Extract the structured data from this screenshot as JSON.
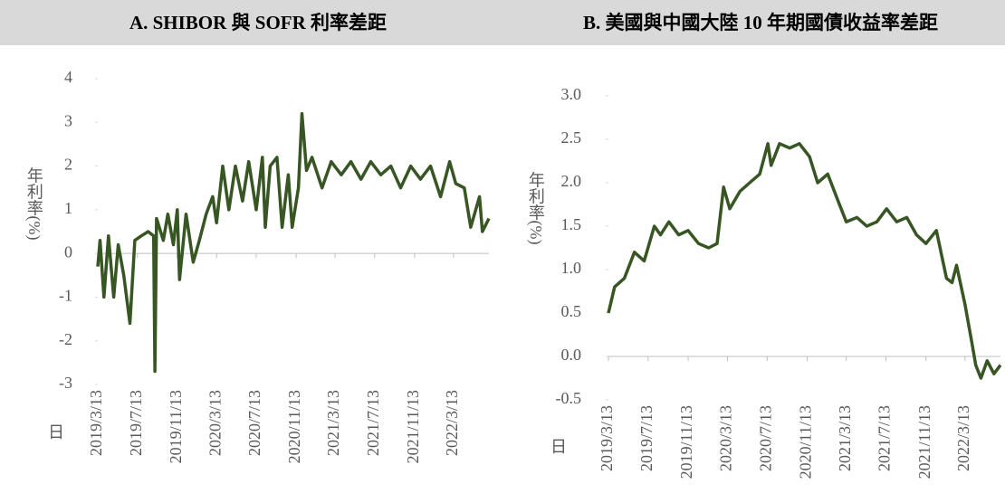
{
  "chart_data": [
    {
      "type": "line",
      "title": "A. SHIBOR 與 SOFR 利率差距",
      "ylabel": "年利率(%)",
      "xlabel": "日",
      "color": "#375623",
      "xlim": [
        "2019/3/13",
        "2022/6/30"
      ],
      "xticks": [
        "2019/3/13",
        "2019/7/13",
        "2019/11/13",
        "2020/3/13",
        "2020/7/13",
        "2020/11/13",
        "2021/3/13",
        "2021/7/13",
        "2021/11/13",
        "2022/3/13"
      ],
      "ylim": [
        -3,
        4
      ],
      "yticks": [
        4,
        3,
        2,
        1,
        0,
        -1,
        -2,
        -3
      ],
      "x": [
        "2019/3/13",
        "2019/3/20",
        "2019/4/1",
        "2019/4/15",
        "2019/5/1",
        "2019/5/15",
        "2019/6/1",
        "2019/6/20",
        "2019/7/5",
        "2019/7/25",
        "2019/8/15",
        "2019/9/1",
        "2019/9/5",
        "2019/9/10",
        "2019/10/1",
        "2019/10/15",
        "2019/11/1",
        "2019/11/13",
        "2019/11/20",
        "2019/12/10",
        "2020/1/1",
        "2020/1/20",
        "2020/2/10",
        "2020/3/1",
        "2020/3/13",
        "2020/4/1",
        "2020/4/20",
        "2020/5/10",
        "2020/6/1",
        "2020/6/20",
        "2020/7/13",
        "2020/8/1",
        "2020/8/10",
        "2020/8/25",
        "2020/9/15",
        "2020/10/1",
        "2020/10/20",
        "2020/11/1",
        "2020/11/20",
        "2020/12/1",
        "2020/12/15",
        "2021/1/1",
        "2021/2/1",
        "2021/3/1",
        "2021/4/1",
        "2021/5/1",
        "2021/6/1",
        "2021/7/1",
        "2021/8/1",
        "2021/9/1",
        "2021/10/1",
        "2021/11/1",
        "2021/12/1",
        "2022/1/1",
        "2022/2/1",
        "2022/3/1",
        "2022/3/20",
        "2022/4/15",
        "2022/5/5",
        "2022/6/1",
        "2022/6/10",
        "2022/6/30"
      ],
      "values": [
        -0.3,
        0.3,
        -1.0,
        0.4,
        -1.0,
        0.2,
        -0.5,
        -1.6,
        0.3,
        0.4,
        0.5,
        0.4,
        -2.7,
        0.8,
        0.3,
        0.9,
        0.2,
        1.0,
        -0.6,
        0.9,
        -0.2,
        0.3,
        0.9,
        1.3,
        0.7,
        2.0,
        1.0,
        2.0,
        1.2,
        2.1,
        1.0,
        2.2,
        0.6,
        2.0,
        2.2,
        0.6,
        1.8,
        0.6,
        1.5,
        3.2,
        1.9,
        2.2,
        1.5,
        2.1,
        1.8,
        2.1,
        1.7,
        2.1,
        1.8,
        2.0,
        1.5,
        2.0,
        1.7,
        2.0,
        1.3,
        2.1,
        1.6,
        1.5,
        0.6,
        1.3,
        0.5,
        0.8
      ]
    },
    {
      "type": "line",
      "title": "B. 美國與中國大陸 10 年期國債收益率差距",
      "ylabel": "年利率(%)",
      "xlabel": "日",
      "color": "#375623",
      "xlim": [
        "2019/3/13",
        "2022/6/30"
      ],
      "xticks": [
        "2019/3/13",
        "2019/7/13",
        "2019/11/13",
        "2020/3/13",
        "2020/7/13",
        "2020/11/13",
        "2021/3/13",
        "2021/7/13",
        "2021/11/13",
        "2022/3/13"
      ],
      "ylim": [
        -0.5,
        3.0
      ],
      "yticks": [
        {
          "value": 3.0,
          "label": "3.0"
        },
        2.5,
        {
          "value": 2.0,
          "label": "2.0"
        },
        1.5,
        {
          "value": 1.0,
          "label": "1.0"
        },
        0.5,
        {
          "value": 0.0,
          "label": "0.0"
        },
        -0.5
      ],
      "x": [
        "2019/3/13",
        "2019/4/1",
        "2019/5/1",
        "2019/6/1",
        "2019/7/1",
        "2019/8/1",
        "2019/8/20",
        "2019/9/15",
        "2019/10/15",
        "2019/11/13",
        "2019/12/15",
        "2020/1/15",
        "2020/2/10",
        "2020/3/1",
        "2020/3/20",
        "2020/4/20",
        "2020/5/20",
        "2020/6/20",
        "2020/7/15",
        "2020/7/25",
        "2020/8/20",
        "2020/9/20",
        "2020/10/20",
        "2020/11/20",
        "2020/12/15",
        "2021/1/15",
        "2021/2/15",
        "2021/3/13",
        "2021/4/15",
        "2021/5/15",
        "2021/6/15",
        "2021/7/15",
        "2021/8/15",
        "2021/9/15",
        "2021/10/15",
        "2021/11/13",
        "2021/12/15",
        "2022/1/15",
        "2022/2/1",
        "2022/2/15",
        "2022/3/13",
        "2022/4/1",
        "2022/4/15",
        "2022/5/1",
        "2022/5/20",
        "2022/6/10",
        "2022/6/30"
      ],
      "values": [
        0.5,
        0.8,
        0.9,
        1.2,
        1.1,
        1.5,
        1.4,
        1.55,
        1.4,
        1.45,
        1.3,
        1.25,
        1.3,
        1.95,
        1.7,
        1.9,
        2.0,
        2.1,
        2.45,
        2.2,
        2.45,
        2.4,
        2.45,
        2.3,
        2.0,
        2.1,
        1.8,
        1.55,
        1.6,
        1.5,
        1.55,
        1.7,
        1.55,
        1.6,
        1.4,
        1.3,
        1.45,
        0.9,
        0.85,
        1.05,
        0.6,
        0.2,
        -0.1,
        -0.25,
        -0.05,
        -0.2,
        -0.1
      ]
    }
  ]
}
